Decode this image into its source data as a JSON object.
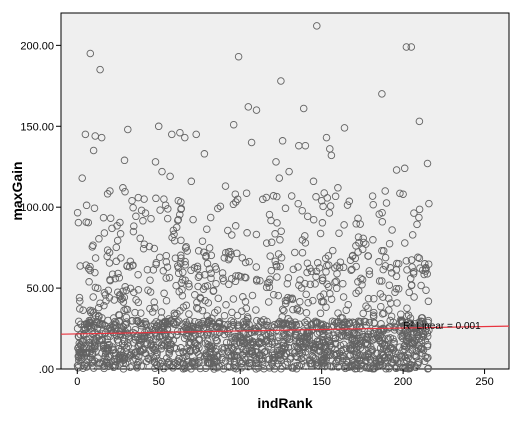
{
  "chart_data": {
    "type": "scatter",
    "title": "",
    "xlabel": "indRank",
    "ylabel": "maxGain",
    "xlim": [
      -10,
      265
    ],
    "ylim": [
      0,
      220
    ],
    "x_ticks": [
      0,
      50,
      100,
      150,
      200,
      250
    ],
    "x_tick_labels": [
      "0",
      "50",
      "100",
      "150",
      "200",
      "250"
    ],
    "y_ticks": [
      0,
      50,
      100,
      150,
      200
    ],
    "y_tick_labels": [
      ".00",
      "50.00",
      "100.00",
      "150.00",
      "200.00"
    ],
    "grid": false,
    "plot_background": "#efefef",
    "marker_color": "#636363",
    "fit_line": {
      "type": "linear",
      "label": "R² Linear = 0.001",
      "color": "#e8343f",
      "x": [
        -10,
        265
      ],
      "y": [
        21.5,
        26.5
      ]
    },
    "outliers": [
      {
        "x": 147,
        "y": 212
      },
      {
        "x": 202,
        "y": 199
      },
      {
        "x": 205,
        "y": 199
      },
      {
        "x": 8,
        "y": 195
      },
      {
        "x": 99,
        "y": 193
      },
      {
        "x": 14,
        "y": 185
      },
      {
        "x": 125,
        "y": 178
      },
      {
        "x": 187,
        "y": 170
      },
      {
        "x": 105,
        "y": 162
      },
      {
        "x": 110,
        "y": 160
      },
      {
        "x": 139,
        "y": 161
      },
      {
        "x": 210,
        "y": 153
      },
      {
        "x": 96,
        "y": 151
      },
      {
        "x": 50,
        "y": 150
      },
      {
        "x": 164,
        "y": 149
      },
      {
        "x": 31,
        "y": 148
      },
      {
        "x": 58,
        "y": 145
      },
      {
        "x": 63,
        "y": 146
      },
      {
        "x": 5,
        "y": 145
      },
      {
        "x": 11,
        "y": 144
      },
      {
        "x": 73,
        "y": 145
      },
      {
        "x": 15,
        "y": 143
      },
      {
        "x": 66,
        "y": 143
      },
      {
        "x": 153,
        "y": 143
      },
      {
        "x": 126,
        "y": 141
      },
      {
        "x": 107,
        "y": 140
      },
      {
        "x": 136,
        "y": 138
      },
      {
        "x": 140,
        "y": 138
      },
      {
        "x": 155,
        "y": 136
      },
      {
        "x": 10,
        "y": 135
      },
      {
        "x": 78,
        "y": 133
      },
      {
        "x": 156,
        "y": 132
      },
      {
        "x": 29,
        "y": 129
      },
      {
        "x": 48,
        "y": 128
      },
      {
        "x": 122,
        "y": 128
      },
      {
        "x": 215,
        "y": 127
      },
      {
        "x": 201,
        "y": 124
      },
      {
        "x": 196,
        "y": 123
      },
      {
        "x": 52,
        "y": 122
      },
      {
        "x": 130,
        "y": 122
      },
      {
        "x": 57,
        "y": 119
      },
      {
        "x": 3,
        "y": 118
      },
      {
        "x": 124,
        "y": 118
      },
      {
        "x": 70,
        "y": 116
      },
      {
        "x": 145,
        "y": 116
      },
      {
        "x": 28,
        "y": 112
      },
      {
        "x": 91,
        "y": 113
      },
      {
        "x": 20,
        "y": 110
      },
      {
        "x": 160,
        "y": 112
      },
      {
        "x": 189,
        "y": 110
      },
      {
        "x": 97,
        "y": 108
      },
      {
        "x": 200,
        "y": 108
      },
      {
        "x": 41,
        "y": 105
      },
      {
        "x": 62,
        "y": 104
      },
      {
        "x": 116,
        "y": 106
      },
      {
        "x": 150,
        "y": 104
      }
    ],
    "points_cloud": {
      "count": 1900,
      "x_range": [
        0,
        216
      ],
      "y_distribution": "dense near 0, thinning above 40, scattered to about 110"
    }
  }
}
